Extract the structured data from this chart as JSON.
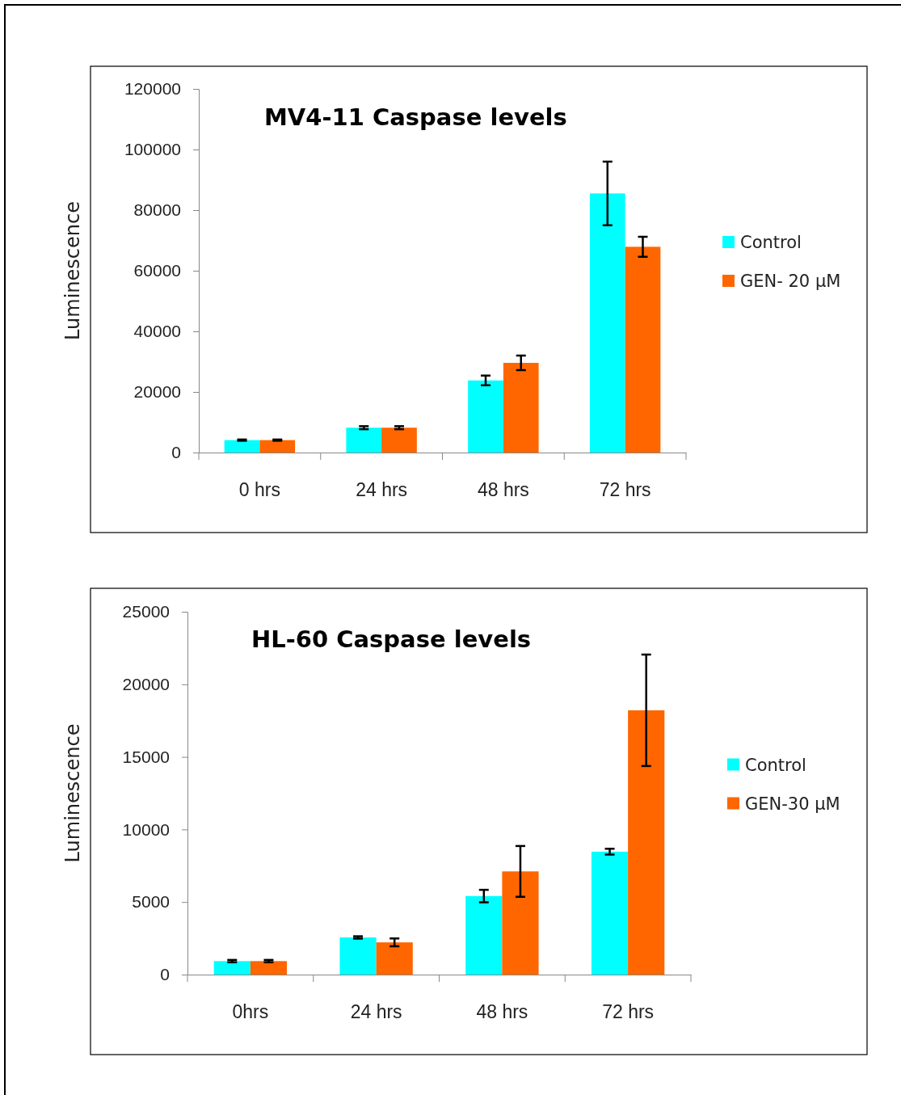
{
  "chart_data": [
    {
      "type": "bar",
      "title": "MV4-11 Caspase levels",
      "ylabel": "Luminescence",
      "categories": [
        "0 hrs",
        "24 hrs",
        "48 hrs",
        "72 hrs"
      ],
      "series": [
        {
          "name": "Control",
          "color": "#00ffff",
          "values": [
            4100,
            8200,
            23800,
            85500
          ],
          "errors": [
            200,
            500,
            1600,
            10500
          ]
        },
        {
          "name": "GEN- 20 μM",
          "color": "#ff6600",
          "values": [
            4100,
            8200,
            29600,
            67900
          ],
          "errors": [
            200,
            500,
            2400,
            3300
          ]
        }
      ],
      "ylim": [
        0,
        120000
      ],
      "yticks": [
        0,
        20000,
        40000,
        60000,
        80000,
        100000,
        120000
      ],
      "legend": "right"
    },
    {
      "type": "bar",
      "title": "HL-60 Caspase levels",
      "ylabel": "Luminescence",
      "categories": [
        "0hrs",
        "24 hrs",
        "48 hrs",
        "72 hrs"
      ],
      "series": [
        {
          "name": "Control",
          "color": "#00ffff",
          "values": [
            930,
            2560,
            5410,
            8470
          ],
          "errors": [
            80,
            80,
            430,
            200
          ]
        },
        {
          "name": "GEN-30 μM",
          "color": "#ff6600",
          "values": [
            930,
            2220,
            7110,
            18210
          ],
          "errors": [
            80,
            270,
            1750,
            3840
          ]
        }
      ],
      "ylim": [
        0,
        25000
      ],
      "yticks": [
        0,
        5000,
        10000,
        15000,
        20000,
        25000
      ],
      "legend": "right"
    }
  ]
}
